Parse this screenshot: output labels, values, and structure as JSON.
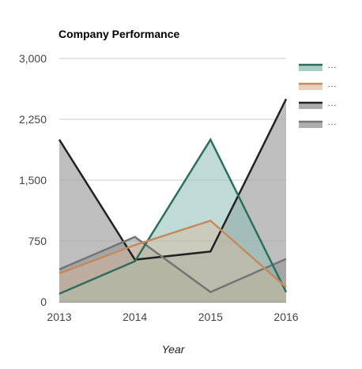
{
  "chart_data": {
    "type": "area",
    "title": "Company Performance",
    "xlabel": "Year",
    "ylabel": "",
    "categories": [
      "2013",
      "2014",
      "2015",
      "2016"
    ],
    "ylim": [
      0,
      3000
    ],
    "yticks": [
      0,
      750,
      1500,
      2250,
      3000
    ],
    "ytick_labels": [
      "0",
      "750",
      "1,500",
      "2,250",
      "3,000"
    ],
    "grid": true,
    "legend_position": "right",
    "series": [
      {
        "name": "…",
        "values": [
          2000,
          520,
          620,
          2500
        ],
        "color": "#222222",
        "fill": "#a8a8a8",
        "fill_opacity": 0.75
      },
      {
        "name": "…",
        "values": [
          400,
          800,
          120,
          530
        ],
        "color": "#757575",
        "fill": "#8c8c8c",
        "fill_opacity": 0.5
      },
      {
        "name": "…",
        "values": [
          100,
          500,
          2000,
          120
        ],
        "color": "#2e6e5e",
        "fill": "#8dbdb2",
        "fill_opacity": 0.55
      },
      {
        "name": "…",
        "values": [
          350,
          700,
          1000,
          180
        ],
        "color": "#c48a5e",
        "fill": "#d9b79b",
        "fill_opacity": 0.45
      }
    ],
    "legend_order": [
      2,
      3,
      0,
      1
    ]
  }
}
